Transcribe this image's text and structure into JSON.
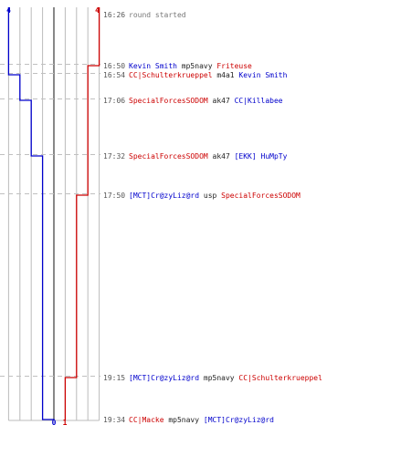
{
  "round": {
    "team_blue_start": "4",
    "team_red_start": "4",
    "team_blue_end": "0",
    "team_red_end": "1"
  },
  "colors": {
    "blue": "#0000cc",
    "red": "#cc0000",
    "grid": "#bbbbbb",
    "grid_dark": "#555555",
    "time": "#555555",
    "note": "#777777",
    "weapon": "#222222",
    "dash": "#c0c0c0"
  },
  "events": [
    {
      "time": "16:26",
      "note": "round started",
      "blue_after": 4,
      "red_after": 4
    },
    {
      "time": "16:50",
      "killer": "Kevin Smith",
      "killer_team": "blue",
      "weapon": "mp5navy",
      "victim": "Friteuse",
      "victim_team": "red",
      "blue_after": 4,
      "red_after": 3
    },
    {
      "time": "16:54",
      "killer": "CC|Schulterkrueppel",
      "killer_team": "red",
      "weapon": "m4a1",
      "victim": "Kevin Smith",
      "victim_team": "blue",
      "blue_after": 3,
      "red_after": 3
    },
    {
      "time": "17:06",
      "killer": "SpecialForcesSODOM",
      "killer_team": "red",
      "weapon": "ak47",
      "victim": "CC|Killabee",
      "victim_team": "blue",
      "blue_after": 2,
      "red_after": 3
    },
    {
      "time": "17:32",
      "killer": "SpecialForcesSODOM",
      "killer_team": "red",
      "weapon": "ak47",
      "victim": "[EKK] HuMpTy",
      "victim_team": "blue",
      "blue_after": 1,
      "red_after": 3
    },
    {
      "time": "17:50",
      "killer": "[MCT]Cr@zyLiz@rd",
      "killer_team": "blue",
      "weapon": "usp",
      "victim": "SpecialForcesSODOM",
      "victim_team": "red",
      "blue_after": 1,
      "red_after": 2
    },
    {
      "time": "19:15",
      "killer": "[MCT]Cr@zyLiz@rd",
      "killer_team": "blue",
      "weapon": "mp5navy",
      "victim": "CC|Schulterkrueppel",
      "victim_team": "red",
      "blue_after": 1,
      "red_after": 1
    },
    {
      "time": "19:34",
      "killer": "CC|Macke",
      "killer_team": "red",
      "weapon": "mp5navy",
      "victim": "[MCT]Cr@zyLiz@rd",
      "victim_team": "blue",
      "blue_after": 0,
      "red_after": 1
    }
  ]
}
